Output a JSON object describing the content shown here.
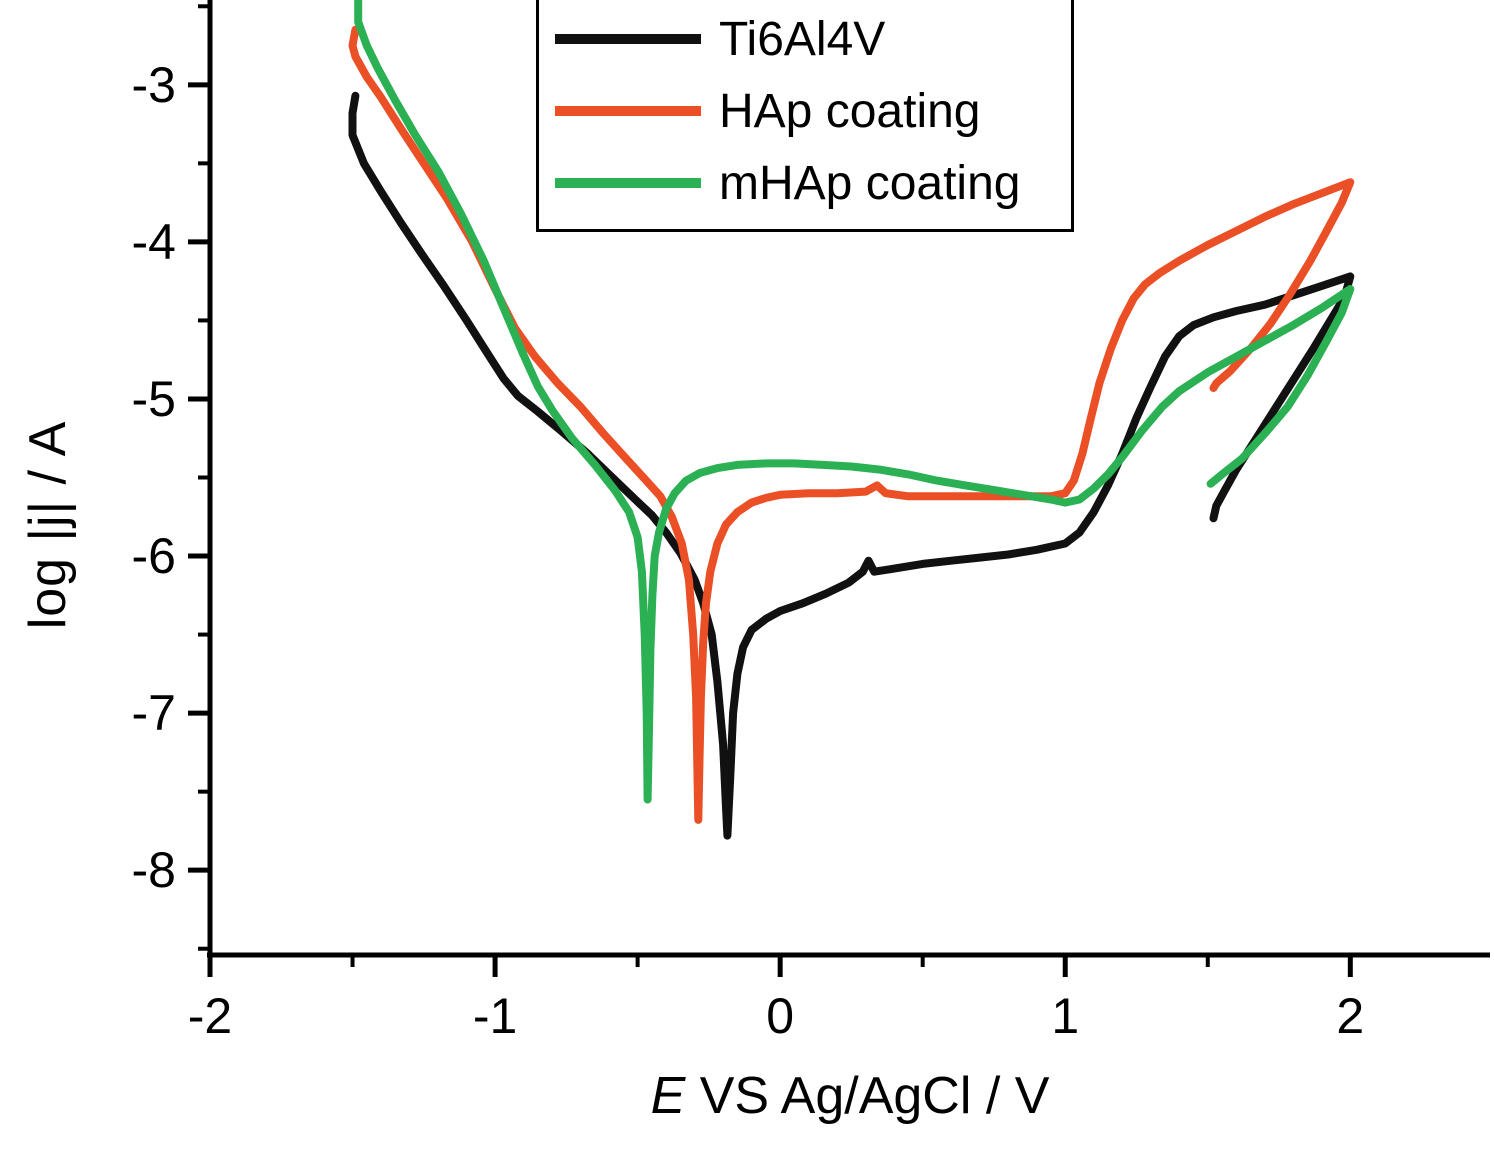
{
  "figure": {
    "ylabel": "log |j| / A",
    "xlabel_prefix": "E",
    "xlabel_rest": " VS Ag/AgCl / V",
    "cropped_top_text": "Ti6Al4V",
    "background_color": "#ffffff",
    "axis_color": "#000000"
  },
  "chart_data": {
    "type": "line",
    "title": "",
    "xlabel": "E VS Ag/AgCl / V",
    "ylabel": "log |j| / A",
    "xlim": [
      -2.0,
      2.49
    ],
    "ylim": [
      -8.54,
      -2.46
    ],
    "xticks": [
      -2,
      -1,
      0,
      1,
      2
    ],
    "yticks": [
      -3,
      -4,
      -5,
      -6,
      -7,
      -8
    ],
    "x_minor_ticks": [
      -1.5,
      -0.5,
      0.5,
      1.5
    ],
    "y_minor_ticks": [
      -2.5,
      -3.5,
      -4.5,
      -5.5,
      -6.5,
      -7.5,
      -8.5
    ],
    "grid": false,
    "legend_position": "top-center",
    "series": [
      {
        "name": "Ti6Al4V",
        "slug": "ti6al4v",
        "color": "#111111",
        "points": [
          [
            -1.49,
            -3.07
          ],
          [
            -1.5,
            -3.18
          ],
          [
            -1.5,
            -3.32
          ],
          [
            -1.46,
            -3.5
          ],
          [
            -1.4,
            -3.68
          ],
          [
            -1.33,
            -3.88
          ],
          [
            -1.26,
            -4.07
          ],
          [
            -1.18,
            -4.28
          ],
          [
            -1.1,
            -4.5
          ],
          [
            -1.03,
            -4.7
          ],
          [
            -0.97,
            -4.87
          ],
          [
            -0.92,
            -4.98
          ],
          [
            -0.85,
            -5.08
          ],
          [
            -0.77,
            -5.2
          ],
          [
            -0.68,
            -5.34
          ],
          [
            -0.6,
            -5.48
          ],
          [
            -0.52,
            -5.62
          ],
          [
            -0.45,
            -5.74
          ],
          [
            -0.4,
            -5.85
          ],
          [
            -0.35,
            -5.98
          ],
          [
            -0.3,
            -6.15
          ],
          [
            -0.27,
            -6.3
          ],
          [
            -0.24,
            -6.5
          ],
          [
            -0.22,
            -6.8
          ],
          [
            -0.2,
            -7.2
          ],
          [
            -0.19,
            -7.6
          ],
          [
            -0.185,
            -7.78
          ],
          [
            -0.175,
            -7.4
          ],
          [
            -0.165,
            -7.0
          ],
          [
            -0.15,
            -6.75
          ],
          [
            -0.13,
            -6.58
          ],
          [
            -0.1,
            -6.47
          ],
          [
            -0.05,
            -6.4
          ],
          [
            0.0,
            -6.35
          ],
          [
            0.08,
            -6.3
          ],
          [
            0.16,
            -6.24
          ],
          [
            0.24,
            -6.17
          ],
          [
            0.29,
            -6.1
          ],
          [
            0.31,
            -6.03
          ],
          [
            0.33,
            -6.1
          ],
          [
            0.4,
            -6.08
          ],
          [
            0.5,
            -6.05
          ],
          [
            0.6,
            -6.03
          ],
          [
            0.7,
            -6.01
          ],
          [
            0.8,
            -5.99
          ],
          [
            0.9,
            -5.96
          ],
          [
            1.0,
            -5.92
          ],
          [
            1.05,
            -5.85
          ],
          [
            1.1,
            -5.72
          ],
          [
            1.15,
            -5.55
          ],
          [
            1.2,
            -5.35
          ],
          [
            1.25,
            -5.12
          ],
          [
            1.3,
            -4.92
          ],
          [
            1.35,
            -4.73
          ],
          [
            1.4,
            -4.6
          ],
          [
            1.45,
            -4.53
          ],
          [
            1.52,
            -4.48
          ],
          [
            1.6,
            -4.44
          ],
          [
            1.7,
            -4.4
          ],
          [
            1.8,
            -4.34
          ],
          [
            1.9,
            -4.28
          ],
          [
            2.0,
            -4.22
          ],
          [
            1.98,
            -4.35
          ],
          [
            1.93,
            -4.5
          ],
          [
            1.87,
            -4.68
          ],
          [
            1.8,
            -4.88
          ],
          [
            1.73,
            -5.08
          ],
          [
            1.66,
            -5.28
          ],
          [
            1.6,
            -5.45
          ],
          [
            1.56,
            -5.58
          ],
          [
            1.53,
            -5.68
          ],
          [
            1.52,
            -5.76
          ]
        ]
      },
      {
        "name": "HAp coating",
        "slug": "hap-coating",
        "color": "#ea4f26",
        "points": [
          [
            -1.49,
            -2.65
          ],
          [
            -1.5,
            -2.75
          ],
          [
            -1.49,
            -2.82
          ],
          [
            -1.45,
            -2.95
          ],
          [
            -1.4,
            -3.08
          ],
          [
            -1.33,
            -3.28
          ],
          [
            -1.25,
            -3.5
          ],
          [
            -1.17,
            -3.72
          ],
          [
            -1.08,
            -4.0
          ],
          [
            -1.0,
            -4.3
          ],
          [
            -0.93,
            -4.55
          ],
          [
            -0.86,
            -4.73
          ],
          [
            -0.78,
            -4.9
          ],
          [
            -0.7,
            -5.05
          ],
          [
            -0.62,
            -5.22
          ],
          [
            -0.54,
            -5.38
          ],
          [
            -0.47,
            -5.52
          ],
          [
            -0.42,
            -5.62
          ],
          [
            -0.38,
            -5.75
          ],
          [
            -0.345,
            -5.92
          ],
          [
            -0.32,
            -6.15
          ],
          [
            -0.305,
            -6.5
          ],
          [
            -0.295,
            -6.9
          ],
          [
            -0.29,
            -7.4
          ],
          [
            -0.287,
            -7.68
          ],
          [
            -0.283,
            -7.3
          ],
          [
            -0.278,
            -6.9
          ],
          [
            -0.27,
            -6.55
          ],
          [
            -0.26,
            -6.3
          ],
          [
            -0.245,
            -6.1
          ],
          [
            -0.22,
            -5.92
          ],
          [
            -0.19,
            -5.8
          ],
          [
            -0.15,
            -5.72
          ],
          [
            -0.1,
            -5.66
          ],
          [
            -0.05,
            -5.63
          ],
          [
            0.0,
            -5.61
          ],
          [
            0.1,
            -5.6
          ],
          [
            0.2,
            -5.6
          ],
          [
            0.3,
            -5.59
          ],
          [
            0.34,
            -5.55
          ],
          [
            0.37,
            -5.6
          ],
          [
            0.45,
            -5.62
          ],
          [
            0.55,
            -5.62
          ],
          [
            0.65,
            -5.62
          ],
          [
            0.75,
            -5.62
          ],
          [
            0.85,
            -5.62
          ],
          [
            0.95,
            -5.62
          ],
          [
            1.0,
            -5.6
          ],
          [
            1.03,
            -5.52
          ],
          [
            1.06,
            -5.35
          ],
          [
            1.09,
            -5.12
          ],
          [
            1.12,
            -4.9
          ],
          [
            1.16,
            -4.68
          ],
          [
            1.2,
            -4.5
          ],
          [
            1.24,
            -4.36
          ],
          [
            1.28,
            -4.27
          ],
          [
            1.33,
            -4.2
          ],
          [
            1.4,
            -4.12
          ],
          [
            1.5,
            -4.02
          ],
          [
            1.6,
            -3.93
          ],
          [
            1.7,
            -3.84
          ],
          [
            1.8,
            -3.76
          ],
          [
            1.9,
            -3.69
          ],
          [
            2.0,
            -3.62
          ],
          [
            1.97,
            -3.75
          ],
          [
            1.92,
            -3.92
          ],
          [
            1.86,
            -4.12
          ],
          [
            1.79,
            -4.33
          ],
          [
            1.72,
            -4.52
          ],
          [
            1.65,
            -4.68
          ],
          [
            1.58,
            -4.82
          ],
          [
            1.53,
            -4.9
          ],
          [
            1.52,
            -4.93
          ]
        ]
      },
      {
        "name": "mHAp coating",
        "slug": "mhap-coating",
        "color": "#2bb054",
        "points": [
          [
            -1.48,
            -2.45
          ],
          [
            -1.48,
            -2.6
          ],
          [
            -1.45,
            -2.75
          ],
          [
            -1.41,
            -2.9
          ],
          [
            -1.35,
            -3.1
          ],
          [
            -1.28,
            -3.32
          ],
          [
            -1.2,
            -3.55
          ],
          [
            -1.12,
            -3.82
          ],
          [
            -1.04,
            -4.12
          ],
          [
            -0.97,
            -4.42
          ],
          [
            -0.9,
            -4.72
          ],
          [
            -0.85,
            -4.92
          ],
          [
            -0.8,
            -5.07
          ],
          [
            -0.73,
            -5.25
          ],
          [
            -0.65,
            -5.42
          ],
          [
            -0.58,
            -5.58
          ],
          [
            -0.53,
            -5.72
          ],
          [
            -0.5,
            -5.88
          ],
          [
            -0.485,
            -6.1
          ],
          [
            -0.475,
            -6.5
          ],
          [
            -0.468,
            -7.0
          ],
          [
            -0.465,
            -7.55
          ],
          [
            -0.46,
            -7.1
          ],
          [
            -0.455,
            -6.6
          ],
          [
            -0.448,
            -6.25
          ],
          [
            -0.44,
            -6.0
          ],
          [
            -0.425,
            -5.85
          ],
          [
            -0.4,
            -5.7
          ],
          [
            -0.37,
            -5.6
          ],
          [
            -0.33,
            -5.52
          ],
          [
            -0.28,
            -5.47
          ],
          [
            -0.22,
            -5.44
          ],
          [
            -0.15,
            -5.42
          ],
          [
            -0.05,
            -5.41
          ],
          [
            0.05,
            -5.41
          ],
          [
            0.15,
            -5.42
          ],
          [
            0.25,
            -5.43
          ],
          [
            0.35,
            -5.45
          ],
          [
            0.45,
            -5.48
          ],
          [
            0.55,
            -5.52
          ],
          [
            0.65,
            -5.55
          ],
          [
            0.75,
            -5.58
          ],
          [
            0.85,
            -5.61
          ],
          [
            0.95,
            -5.64
          ],
          [
            1.0,
            -5.66
          ],
          [
            1.05,
            -5.64
          ],
          [
            1.1,
            -5.57
          ],
          [
            1.15,
            -5.48
          ],
          [
            1.2,
            -5.37
          ],
          [
            1.27,
            -5.2
          ],
          [
            1.34,
            -5.05
          ],
          [
            1.4,
            -4.95
          ],
          [
            1.5,
            -4.83
          ],
          [
            1.6,
            -4.73
          ],
          [
            1.7,
            -4.63
          ],
          [
            1.8,
            -4.53
          ],
          [
            1.9,
            -4.42
          ],
          [
            2.0,
            -4.3
          ],
          [
            1.97,
            -4.45
          ],
          [
            1.92,
            -4.62
          ],
          [
            1.85,
            -4.85
          ],
          [
            1.78,
            -5.05
          ],
          [
            1.7,
            -5.22
          ],
          [
            1.62,
            -5.38
          ],
          [
            1.55,
            -5.48
          ],
          [
            1.51,
            -5.54
          ]
        ]
      }
    ]
  }
}
